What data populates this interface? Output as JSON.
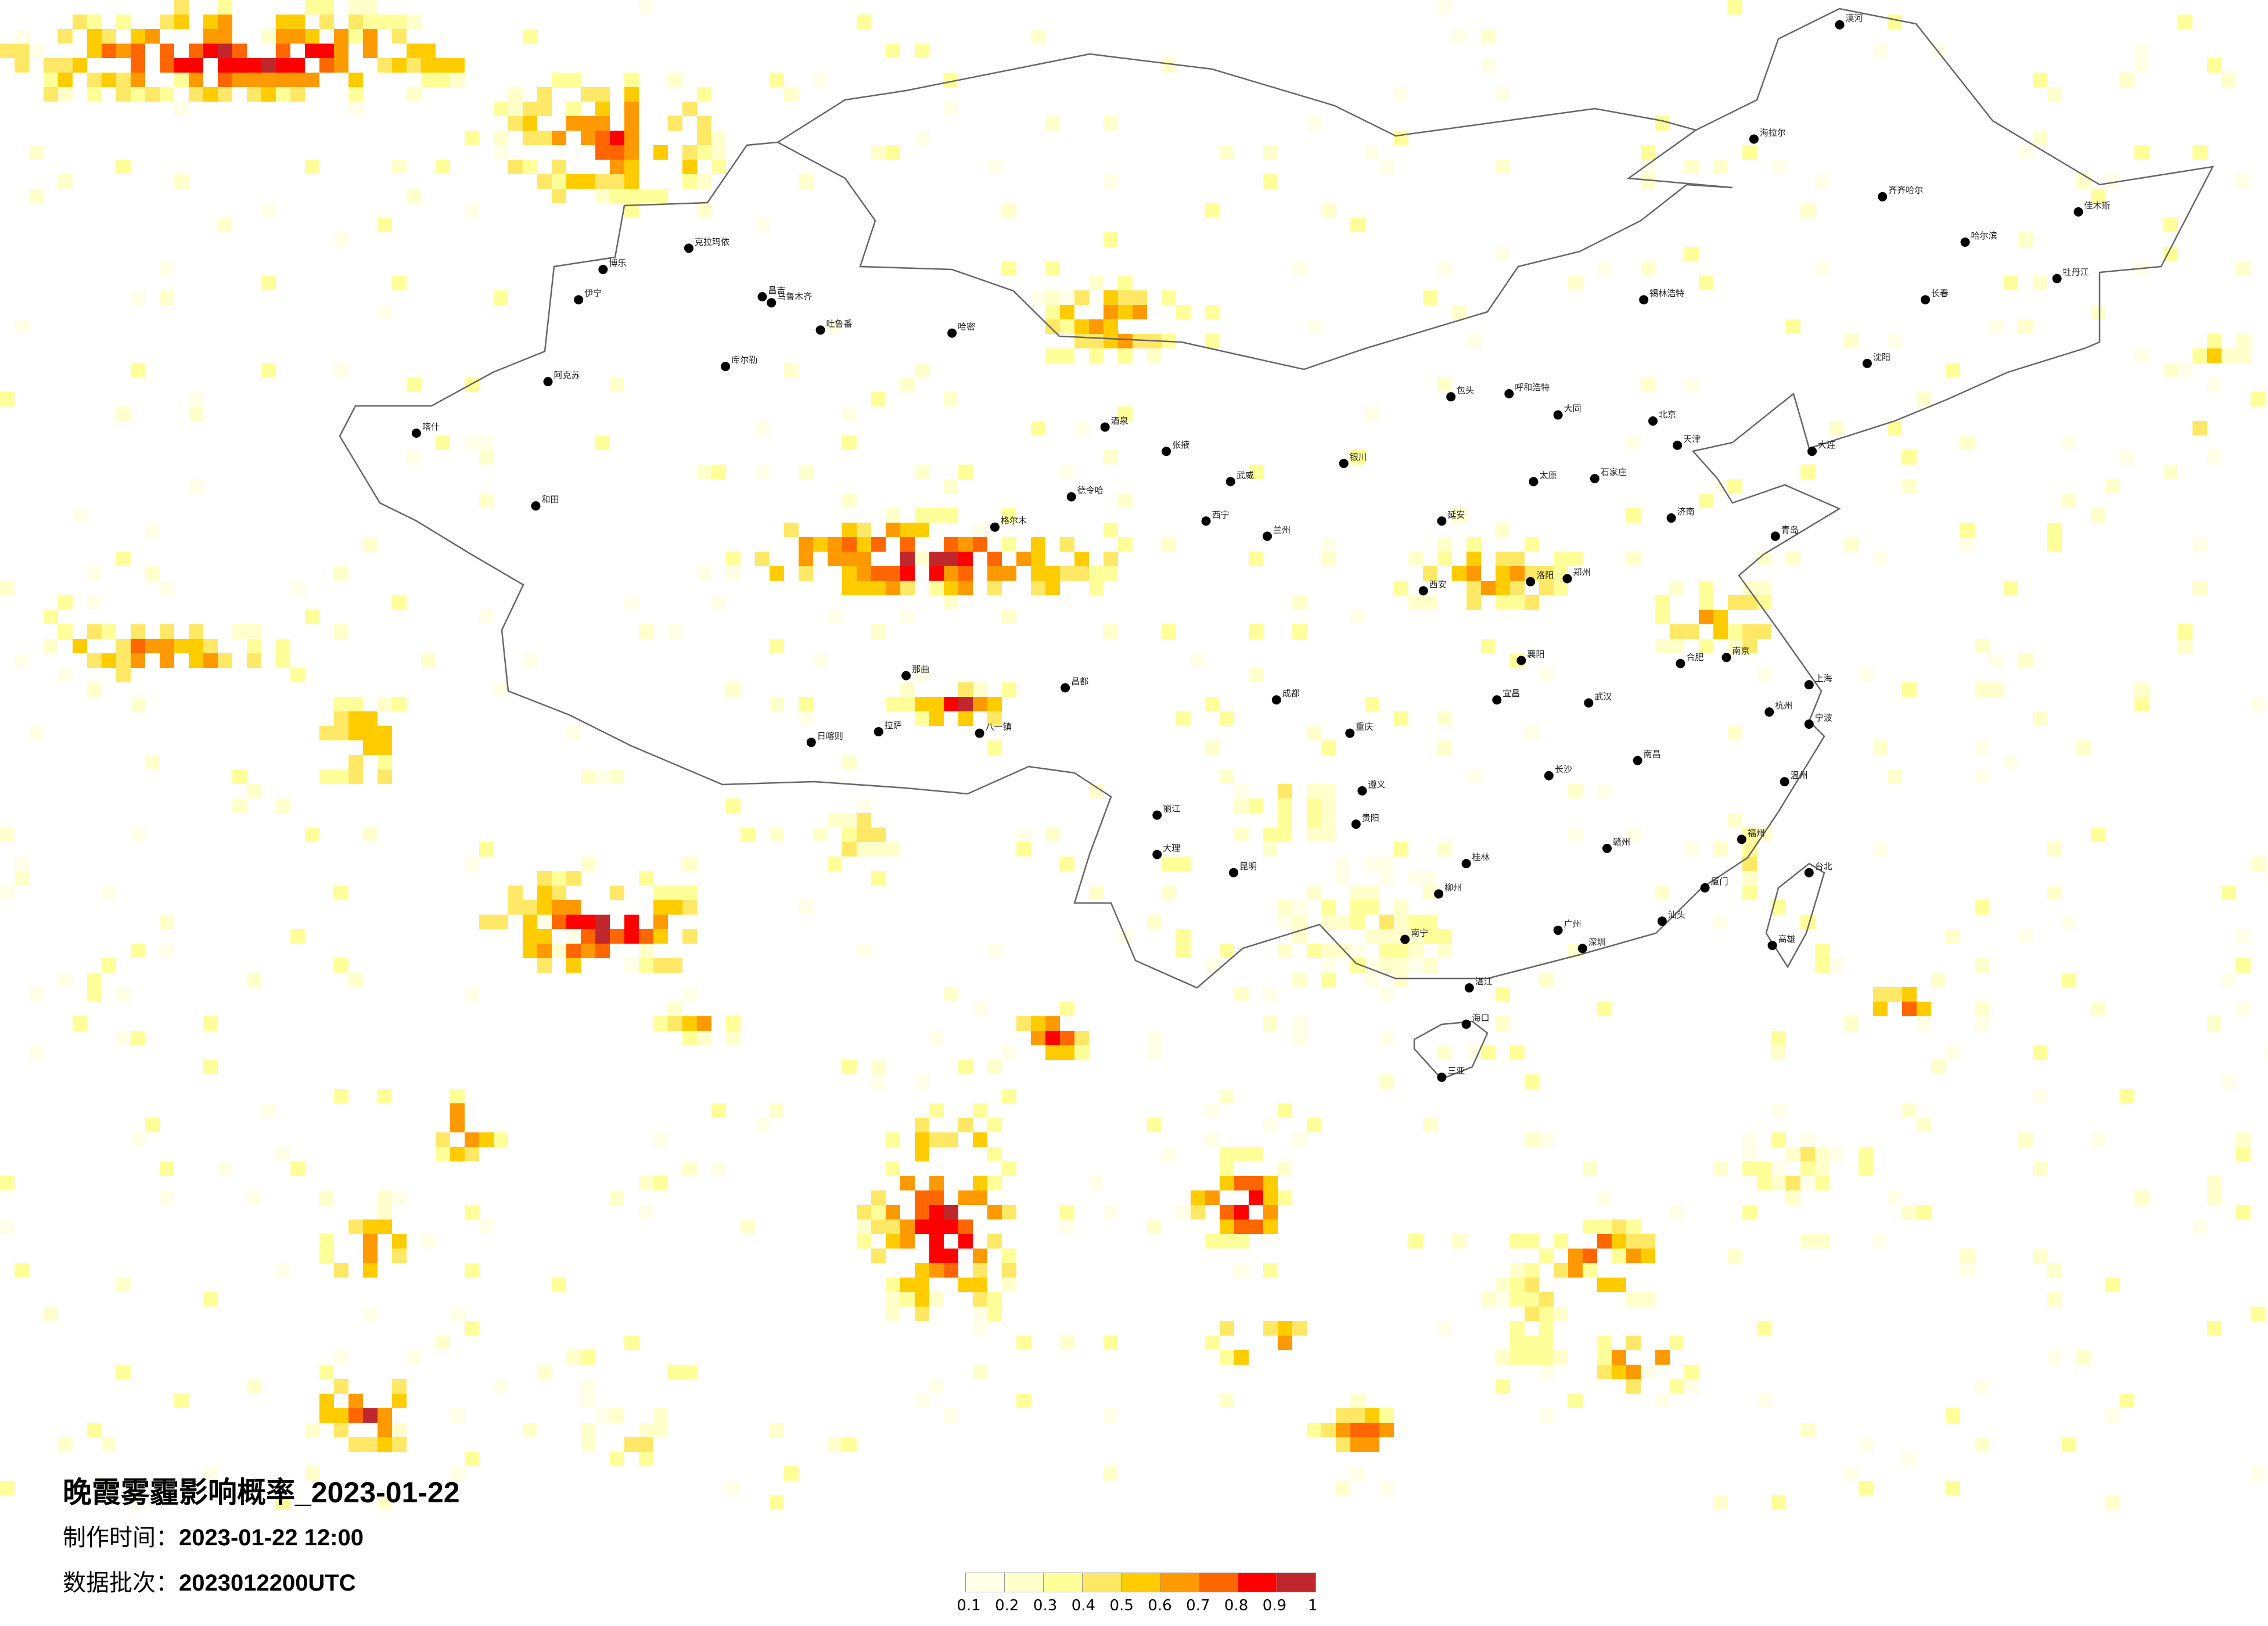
{
  "title": "晚霞雾霾影响概率_2023-01-22",
  "production_time": {
    "label": "制作时间：",
    "value": "2023-01-22 12:00"
  },
  "data_batch": {
    "label": "数据批次：",
    "value": "2023012200UTC"
  },
  "legend": {
    "labels": [
      "0.1",
      "0.2",
      "0.3",
      "0.4",
      "0.5",
      "0.6",
      "0.7",
      "0.8",
      "0.9",
      "1"
    ],
    "colors": [
      "#FFFFE8",
      "#FFFFCC",
      "#FFFF99",
      "#FFE866",
      "#FFCC00",
      "#FF9900",
      "#FF6600",
      "#FF0000",
      "#C0272D"
    ]
  },
  "cities": [
    {
      "name": "乌鲁木齐",
      "lon": 87.6,
      "lat": 43.8
    },
    {
      "name": "昌吉",
      "lon": 87.3,
      "lat": 44.0
    },
    {
      "name": "克拉玛依",
      "lon": 84.9,
      "lat": 45.6
    },
    {
      "name": "伊宁",
      "lon": 81.3,
      "lat": 43.9
    },
    {
      "name": "博乐",
      "lon": 82.1,
      "lat": 44.9
    },
    {
      "name": "吐鲁番",
      "lon": 89.2,
      "lat": 42.9
    },
    {
      "name": "哈密",
      "lon": 93.5,
      "lat": 42.8
    },
    {
      "name": "库尔勒",
      "lon": 86.1,
      "lat": 41.7
    },
    {
      "name": "阿克苏",
      "lon": 80.3,
      "lat": 41.2
    },
    {
      "name": "喀什",
      "lon": 76.0,
      "lat": 39.5
    },
    {
      "name": "和田",
      "lon": 79.9,
      "lat": 37.1
    },
    {
      "name": "拉萨",
      "lon": 91.1,
      "lat": 29.65
    },
    {
      "name": "日喀则",
      "lon": 88.9,
      "lat": 29.3
    },
    {
      "name": "八一镇",
      "lon": 94.4,
      "lat": 29.6
    },
    {
      "name": "那曲",
      "lon": 92.0,
      "lat": 31.5
    },
    {
      "name": "昌都",
      "lon": 97.2,
      "lat": 31.1
    },
    {
      "name": "格尔木",
      "lon": 94.9,
      "lat": 36.4
    },
    {
      "name": "德令哈",
      "lon": 97.4,
      "lat": 37.4
    },
    {
      "name": "西宁",
      "lon": 101.8,
      "lat": 36.6
    },
    {
      "name": "兰州",
      "lon": 103.8,
      "lat": 36.1
    },
    {
      "name": "银川",
      "lon": 106.3,
      "lat": 38.5
    },
    {
      "name": "呼和浩特",
      "lon": 111.7,
      "lat": 40.8
    },
    {
      "name": "包头",
      "lon": 109.8,
      "lat": 40.7
    },
    {
      "name": "北京",
      "lon": 116.4,
      "lat": 39.9
    },
    {
      "name": "天津",
      "lon": 117.2,
      "lat": 39.1
    },
    {
      "name": "石家庄",
      "lon": 114.5,
      "lat": 38.0
    },
    {
      "name": "太原",
      "lon": 112.5,
      "lat": 37.9
    },
    {
      "name": "济南",
      "lon": 117.0,
      "lat": 36.7
    },
    {
      "name": "青岛",
      "lon": 120.4,
      "lat": 36.1
    },
    {
      "name": "郑州",
      "lon": 113.6,
      "lat": 34.7
    },
    {
      "name": "西安",
      "lon": 108.9,
      "lat": 34.3
    },
    {
      "name": "成都",
      "lon": 104.1,
      "lat": 30.7
    },
    {
      "name": "重庆",
      "lon": 106.5,
      "lat": 29.6
    },
    {
      "name": "贵阳",
      "lon": 106.7,
      "lat": 26.6
    },
    {
      "name": "昆明",
      "lon": 102.7,
      "lat": 25.0
    },
    {
      "name": "南宁",
      "lon": 108.3,
      "lat": 22.8
    },
    {
      "name": "广州",
      "lon": 113.3,
      "lat": 23.1
    },
    {
      "name": "深圳",
      "lon": 114.1,
      "lat": 22.5
    },
    {
      "name": "海口",
      "lon": 110.3,
      "lat": 20.0
    },
    {
      "name": "三亚",
      "lon": 109.5,
      "lat": 18.25
    },
    {
      "name": "长沙",
      "lon": 113.0,
      "lat": 28.2
    },
    {
      "name": "武汉",
      "lon": 114.3,
      "lat": 30.6
    },
    {
      "name": "南昌",
      "lon": 115.9,
      "lat": 28.7
    },
    {
      "name": "福州",
      "lon": 119.3,
      "lat": 26.1
    },
    {
      "name": "厦门",
      "lon": 118.1,
      "lat": 24.5
    },
    {
      "name": "杭州",
      "lon": 120.2,
      "lat": 30.3
    },
    {
      "name": "上海",
      "lon": 121.5,
      "lat": 31.2
    },
    {
      "name": "南京",
      "lon": 118.8,
      "lat": 32.1
    },
    {
      "name": "合肥",
      "lon": 117.3,
      "lat": 31.9
    },
    {
      "name": "沈阳",
      "lon": 123.4,
      "lat": 41.8
    },
    {
      "name": "长春",
      "lon": 125.3,
      "lat": 43.9
    },
    {
      "name": "哈尔滨",
      "lon": 126.6,
      "lat": 45.8
    },
    {
      "name": "齐齐哈尔",
      "lon": 123.9,
      "lat": 47.3
    },
    {
      "name": "大连",
      "lon": 121.6,
      "lat": 38.9
    },
    {
      "name": "台北",
      "lon": 121.5,
      "lat": 25.0
    },
    {
      "name": "高雄",
      "lon": 120.3,
      "lat": 22.6
    },
    {
      "name": "漠河",
      "lon": 122.5,
      "lat": 52.97
    },
    {
      "name": "海拉尔",
      "lon": 119.7,
      "lat": 49.2
    },
    {
      "name": "佳木斯",
      "lon": 130.3,
      "lat": 46.8
    },
    {
      "name": "牡丹江",
      "lon": 129.6,
      "lat": 44.6
    },
    {
      "name": "锡林浩特",
      "lon": 116.1,
      "lat": 43.9
    },
    {
      "name": "酒泉",
      "lon": 98.5,
      "lat": 39.7
    },
    {
      "name": "张掖",
      "lon": 100.5,
      "lat": 38.9
    },
    {
      "name": "武威",
      "lon": 102.6,
      "lat": 37.9
    },
    {
      "name": "大理",
      "lon": 100.2,
      "lat": 25.6
    },
    {
      "name": "丽江",
      "lon": 100.2,
      "lat": 26.9
    },
    {
      "name": "桂林",
      "lon": 110.3,
      "lat": 25.3
    },
    {
      "name": "柳州",
      "lon": 109.4,
      "lat": 24.3
    },
    {
      "name": "遵义",
      "lon": 106.9,
      "lat": 27.7
    },
    {
      "name": "宜昌",
      "lon": 111.3,
      "lat": 30.7
    },
    {
      "name": "襄阳",
      "lon": 112.1,
      "lat": 32.0
    },
    {
      "name": "洛阳",
      "lon": 112.4,
      "lat": 34.6
    },
    {
      "name": "赣州",
      "lon": 114.9,
      "lat": 25.8
    },
    {
      "name": "温州",
      "lon": 120.7,
      "lat": 28.0
    },
    {
      "name": "宁波",
      "lon": 121.5,
      "lat": 29.9
    },
    {
      "name": "汕头",
      "lon": 116.7,
      "lat": 23.4
    },
    {
      "name": "湛江",
      "lon": 110.4,
      "lat": 21.2
    },
    {
      "name": "延安",
      "lon": 109.5,
      "lat": 36.6
    },
    {
      "name": "大同",
      "lon": 113.3,
      "lat": 40.1
    }
  ]
}
